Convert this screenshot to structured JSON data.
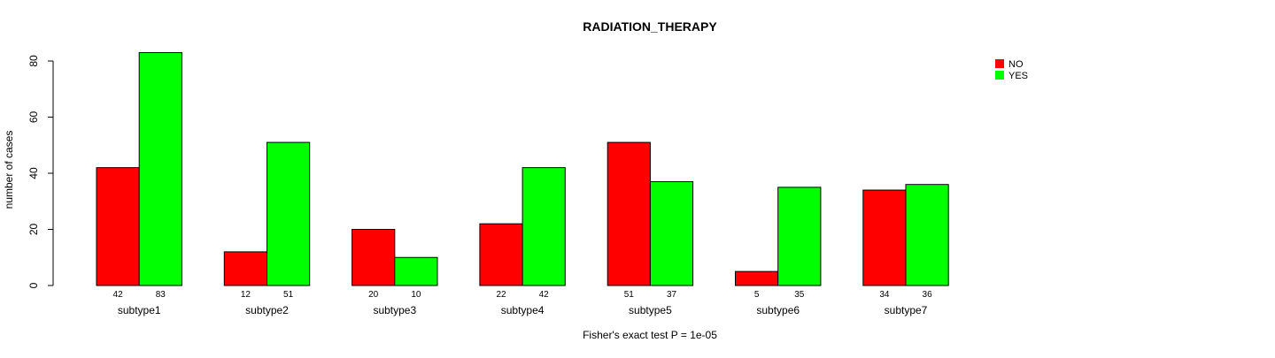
{
  "chart_data": {
    "type": "bar",
    "title": "RADIATION_THERAPY",
    "ylabel": "number of cases",
    "xlabel": "Fisher's exact test P = 1e-05",
    "categories": [
      "subtype1",
      "subtype2",
      "subtype3",
      "subtype4",
      "subtype5",
      "subtype6",
      "subtype7"
    ],
    "series": [
      {
        "name": "NO",
        "color": "#ff0000",
        "values": [
          42,
          12,
          20,
          22,
          51,
          5,
          34
        ]
      },
      {
        "name": "YES",
        "color": "#00ff00",
        "values": [
          83,
          51,
          10,
          42,
          37,
          35,
          36
        ]
      }
    ],
    "ylim": [
      0,
      80
    ],
    "yticks": [
      0,
      20,
      40,
      60,
      80
    ],
    "legend_position": "top-right",
    "grid": false
  }
}
